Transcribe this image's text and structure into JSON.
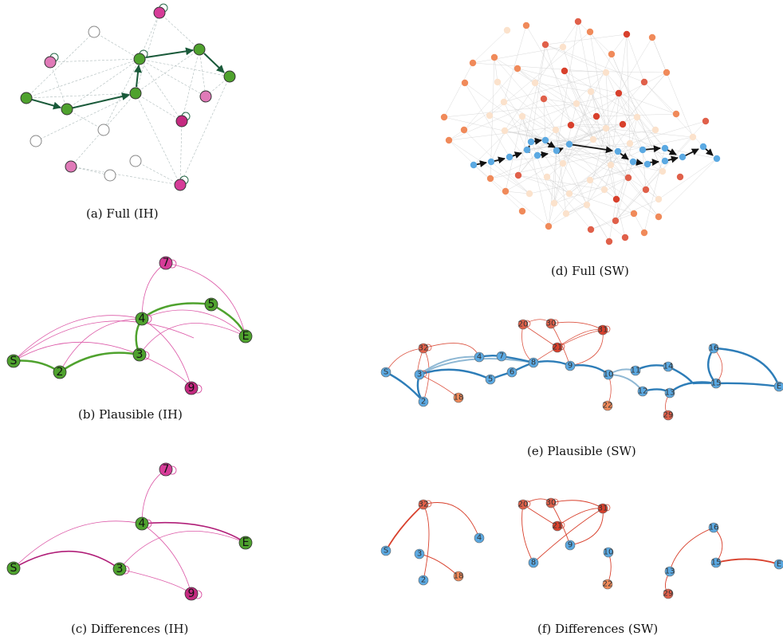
{
  "captions": {
    "a": "(a) Full (IH)",
    "b": "(b) Plausible (IH)",
    "c": "(c) Differences (IH)",
    "d": "(d) Full (SW)",
    "e": "(e) Plausible (SW)",
    "f": "(f) Differences (SW)"
  },
  "colors": {
    "green": "#4fa22e",
    "dark_green_edge": "#1a5a3a",
    "magenta": "#d63c98",
    "pink": "#e07ab8",
    "blue": "#5ba9e2",
    "steel_blue": "#2d7db8",
    "red": "#d8402c",
    "orange": "#f08a5a",
    "peach": "#fbe2cc"
  },
  "panel_b": {
    "labels": {
      "n7": "7",
      "n5": "5",
      "n4": "4",
      "nE": "E",
      "nS": "S",
      "n2": "2",
      "n3": "3",
      "n9": "9"
    }
  },
  "panel_c": {
    "labels": {
      "n7": "7",
      "n4": "4",
      "nE": "E",
      "nS": "S",
      "n3": "3",
      "n9": "9"
    }
  },
  "panel_e": {
    "labels": {
      "s": "S",
      "n2": "2",
      "n3": "3",
      "n4": "4",
      "n5": "5",
      "n6": "6",
      "n7": "7",
      "n8": "8",
      "n9": "9",
      "n10": "10",
      "n11": "11",
      "n12": "12",
      "n13": "13",
      "n14": "14",
      "n15": "15",
      "n16": "16",
      "e": "E",
      "n18": "18",
      "n20": "20",
      "n21": "21",
      "n22": "22",
      "n29": "29",
      "n30": "30",
      "n31": "31",
      "n32": "32"
    }
  },
  "panel_f": {
    "labels": {
      "s": "S",
      "n2": "2",
      "n3": "3",
      "n4": "4",
      "n8": "8",
      "n9": "9",
      "n10": "10",
      "n13": "13",
      "n15": "15",
      "n16": "16",
      "e": "E",
      "n18": "18",
      "n20": "20",
      "n21": "21",
      "n22": "22",
      "n29": "29",
      "n30": "30",
      "n31": "31",
      "n32": "32"
    }
  }
}
